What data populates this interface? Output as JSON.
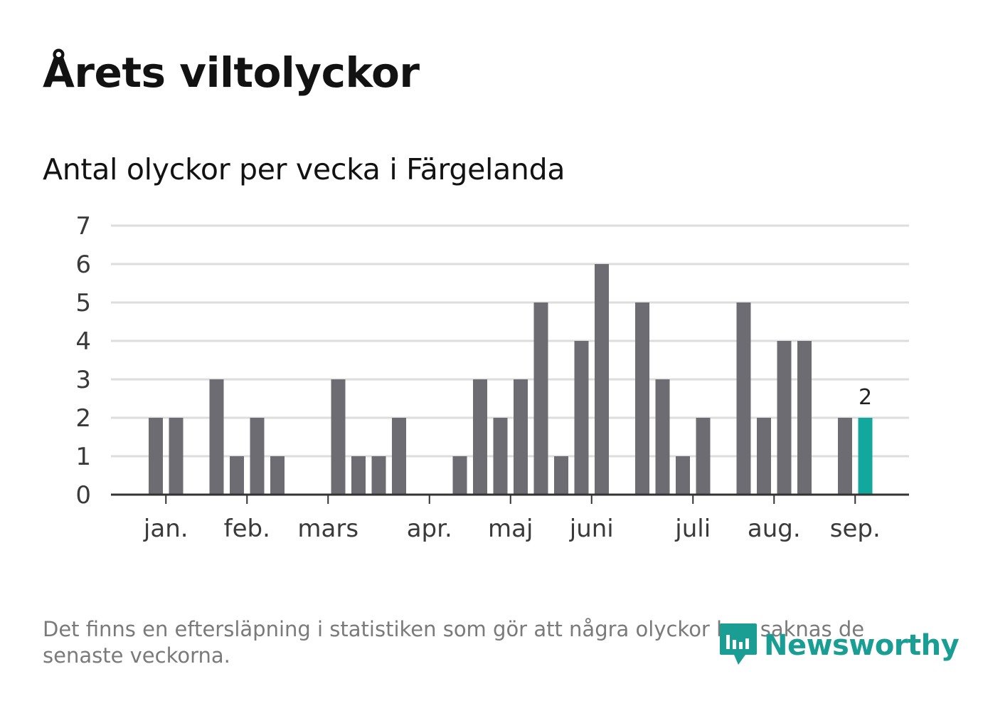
{
  "title": "Årets viltolyckor",
  "subtitle": "Antal olyckor per vecka i Färgelanda",
  "note": "Det finns en eftersläpning i statistiken som gör att några olyckor kan saknas de senaste veckorna.",
  "brand": {
    "name": "Newsworthy",
    "icon": "newsworthy-logo-icon",
    "color": "#1a9e94"
  },
  "colors": {
    "bar": "#6d6c72",
    "highlight": "#13a89e",
    "grid": "#dddddd",
    "axis": "#333333"
  },
  "chart_data": {
    "type": "bar",
    "weeks": [
      1,
      2,
      3,
      4,
      5,
      6,
      7,
      8,
      9,
      10,
      11,
      12,
      13,
      14,
      15,
      16,
      17,
      18,
      19,
      20,
      21,
      22,
      23,
      24,
      25,
      26,
      27,
      28,
      29,
      30,
      31,
      32,
      33,
      34,
      35,
      36,
      37,
      38
    ],
    "values": [
      0,
      0,
      2,
      2,
      0,
      3,
      1,
      2,
      1,
      0,
      0,
      3,
      1,
      1,
      2,
      0,
      0,
      1,
      3,
      2,
      3,
      5,
      1,
      4,
      6,
      0,
      5,
      3,
      1,
      2,
      0,
      5,
      2,
      4,
      4,
      0,
      2,
      2
    ],
    "highlight_index": 37,
    "highlight_label": "2",
    "ylim": [
      0,
      7
    ],
    "yticks": [
      "0",
      "1",
      "2",
      "3",
      "4",
      "5",
      "6",
      "7"
    ],
    "month_ticks": [
      {
        "label": "jan.",
        "week": 3.5
      },
      {
        "label": "feb.",
        "week": 7.5
      },
      {
        "label": "mars",
        "week": 11.5
      },
      {
        "label": "apr.",
        "week": 16.5
      },
      {
        "label": "maj",
        "week": 20.5
      },
      {
        "label": "juni",
        "week": 24.5
      },
      {
        "label": "juli",
        "week": 29.5
      },
      {
        "label": "aug.",
        "week": 33.5
      },
      {
        "label": "sep.",
        "week": 37.5
      }
    ],
    "grid": true,
    "legend": "none"
  }
}
